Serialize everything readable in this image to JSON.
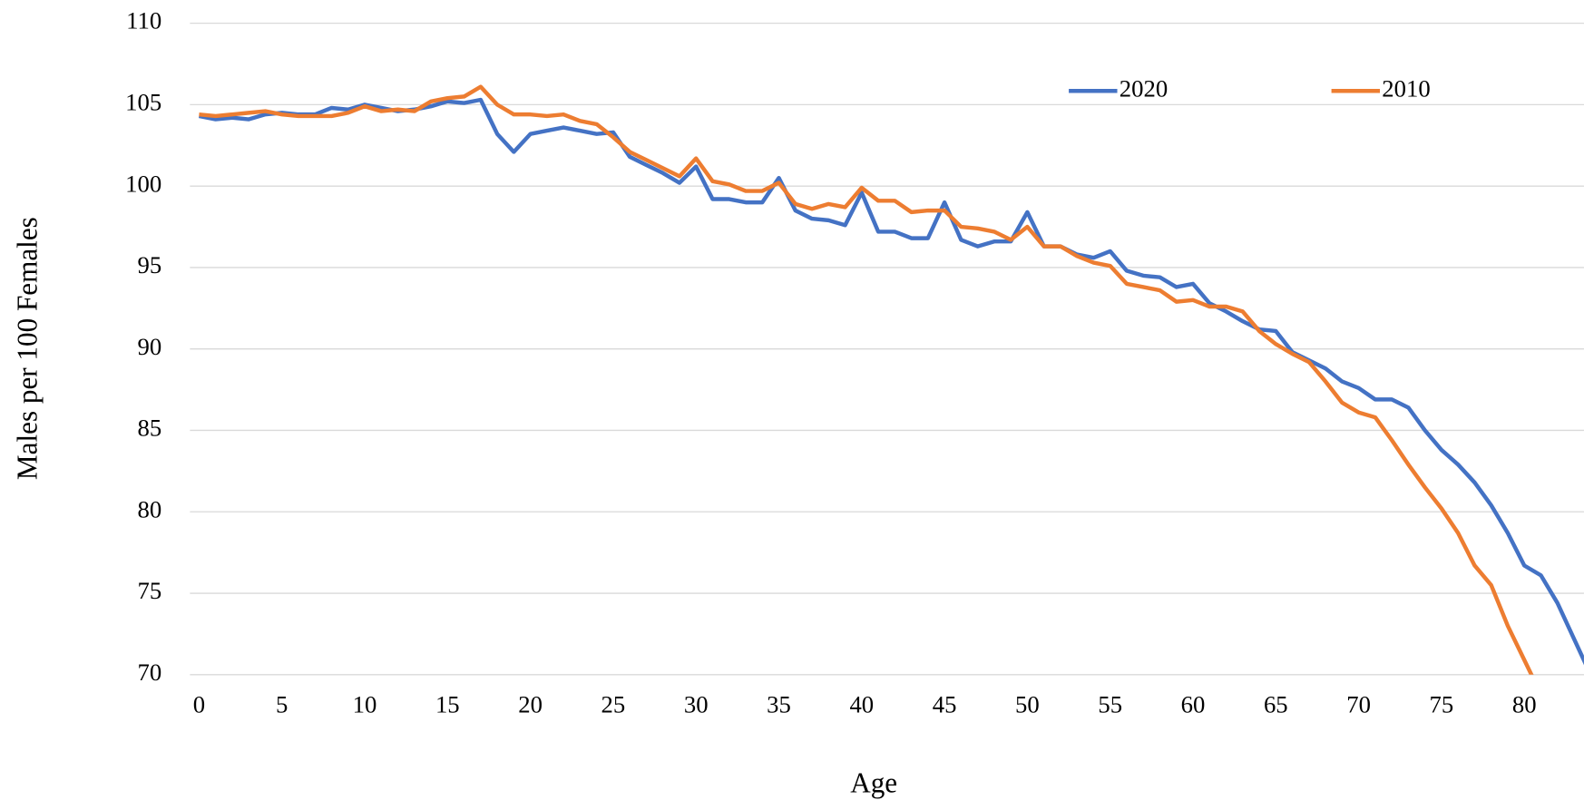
{
  "chart_data": {
    "type": "line",
    "x_label": "Age",
    "y_label": "Males per 100 Females",
    "x": [
      0,
      1,
      2,
      3,
      4,
      5,
      6,
      7,
      8,
      9,
      10,
      11,
      12,
      13,
      14,
      15,
      16,
      17,
      18,
      19,
      20,
      21,
      22,
      23,
      24,
      25,
      26,
      27,
      28,
      29,
      30,
      31,
      32,
      33,
      34,
      35,
      36,
      37,
      38,
      39,
      40,
      41,
      42,
      43,
      44,
      45,
      46,
      47,
      48,
      49,
      50,
      51,
      52,
      53,
      54,
      55,
      56,
      57,
      58,
      59,
      60,
      61,
      62,
      63,
      64,
      65,
      66,
      67,
      68,
      69,
      70,
      71,
      72,
      73,
      74,
      75,
      76,
      77,
      78,
      79,
      80,
      81,
      82,
      83,
      84
    ],
    "series": [
      {
        "name": "2020",
        "color": "#4472c4",
        "values": [
          104.3,
          104.1,
          104.2,
          104.1,
          104.4,
          104.5,
          104.4,
          104.4,
          104.8,
          104.7,
          105.0,
          104.8,
          104.6,
          104.7,
          104.9,
          105.2,
          105.1,
          105.3,
          103.2,
          102.1,
          103.2,
          103.4,
          103.6,
          103.4,
          103.2,
          103.3,
          101.8,
          101.3,
          100.8,
          100.2,
          101.2,
          99.2,
          99.2,
          99.0,
          99.0,
          100.5,
          98.5,
          98.0,
          97.9,
          97.6,
          99.6,
          97.2,
          97.2,
          96.8,
          96.8,
          99.0,
          96.7,
          96.3,
          96.6,
          96.6,
          98.4,
          96.3,
          96.3,
          95.8,
          95.6,
          96.0,
          94.8,
          94.5,
          94.4,
          93.8,
          94.0,
          92.8,
          92.3,
          91.7,
          91.2,
          91.1,
          89.8,
          89.3,
          88.8,
          88.0,
          87.6,
          86.9,
          86.9,
          86.4,
          85.0,
          83.8,
          82.9,
          81.8,
          80.4,
          78.7,
          76.7,
          76.1,
          74.4,
          72.2,
          70.0
        ]
      },
      {
        "name": "2010",
        "color": "#ed7d31",
        "values": [
          104.4,
          104.3,
          104.4,
          104.5,
          104.6,
          104.4,
          104.3,
          104.3,
          104.3,
          104.5,
          104.9,
          104.6,
          104.7,
          104.6,
          105.2,
          105.4,
          105.5,
          106.1,
          105.0,
          104.4,
          104.4,
          104.3,
          104.4,
          104.0,
          103.8,
          103.0,
          102.1,
          101.6,
          101.1,
          100.6,
          101.7,
          100.3,
          100.1,
          99.7,
          99.7,
          100.2,
          98.9,
          98.6,
          98.9,
          98.7,
          99.9,
          99.1,
          99.1,
          98.4,
          98.5,
          98.5,
          97.5,
          97.4,
          97.2,
          96.7,
          97.5,
          96.3,
          96.3,
          95.7,
          95.3,
          95.1,
          94.0,
          93.8,
          93.6,
          92.9,
          93.0,
          92.6,
          92.6,
          92.3,
          91.1,
          90.3,
          89.7,
          89.2,
          88.0,
          86.7,
          86.1,
          85.8,
          84.4,
          82.9,
          81.5,
          80.2,
          78.7,
          76.7,
          75.5,
          73.0,
          70.9,
          68.8,
          null,
          null,
          null
        ]
      }
    ],
    "xlim": [
      -0.55,
      83.6
    ],
    "xticks": [
      0,
      5,
      10,
      15,
      20,
      25,
      30,
      35,
      40,
      45,
      50,
      55,
      60,
      65,
      70,
      75,
      80
    ],
    "ylim": [
      70,
      110
    ],
    "yticks": [
      70,
      75,
      80,
      85,
      90,
      95,
      100,
      105,
      110
    ],
    "grid": true,
    "legend": "top-right"
  }
}
